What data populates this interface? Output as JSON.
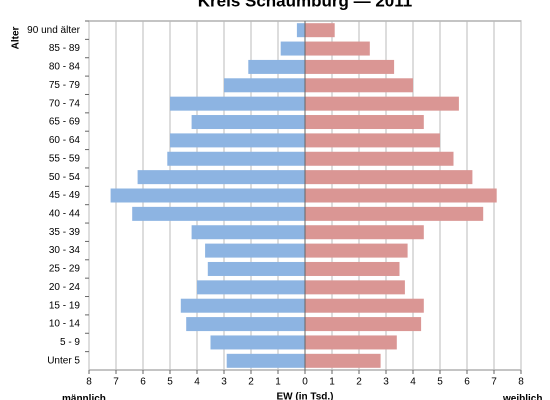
{
  "chart_data": {
    "type": "pyramid",
    "title": "Kreis Schaumburg — 2011",
    "y_label": "Alter",
    "x_label": "EW (in Tsd.)",
    "categories": [
      "90 und älter",
      "85 - 89",
      "80 - 84",
      "75 - 79",
      "70 - 74",
      "65 - 69",
      "60 - 64",
      "55 - 59",
      "50 - 54",
      "45 - 49",
      "40 - 44",
      "35 - 39",
      "30 - 34",
      "25 - 29",
      "20 - 24",
      "15 - 19",
      "10 - 14",
      "5 - 9",
      "Unter 5"
    ],
    "series": [
      {
        "name": "männlich",
        "color": "#8db4e2",
        "values": [
          -0.3,
          -0.9,
          -2.1,
          -3.0,
          -5.0,
          -4.2,
          -5.0,
          -5.1,
          -6.2,
          -7.2,
          -6.4,
          -4.2,
          -3.7,
          -3.6,
          -4.0,
          -4.6,
          -4.4,
          -3.5,
          -2.9
        ]
      },
      {
        "name": "weiblich",
        "color": "#da9694",
        "values": [
          1.1,
          2.4,
          3.3,
          4.0,
          5.7,
          4.4,
          5.0,
          5.5,
          6.2,
          7.1,
          6.6,
          4.4,
          3.8,
          3.5,
          3.7,
          4.4,
          4.3,
          3.4,
          2.8
        ]
      }
    ],
    "xlim": [
      -8,
      8
    ],
    "xticks": [
      {
        "value": -8,
        "label": "8"
      },
      {
        "value": -7,
        "label": "7"
      },
      {
        "value": -6,
        "label": "6"
      },
      {
        "value": -5,
        "label": "5"
      },
      {
        "value": -4,
        "label": "4"
      },
      {
        "value": -3,
        "label": "3"
      },
      {
        "value": -2,
        "label": "2"
      },
      {
        "value": -1,
        "label": "1"
      },
      0,
      1,
      2,
      3,
      4,
      5,
      6,
      7,
      8
    ],
    "grid": true
  }
}
